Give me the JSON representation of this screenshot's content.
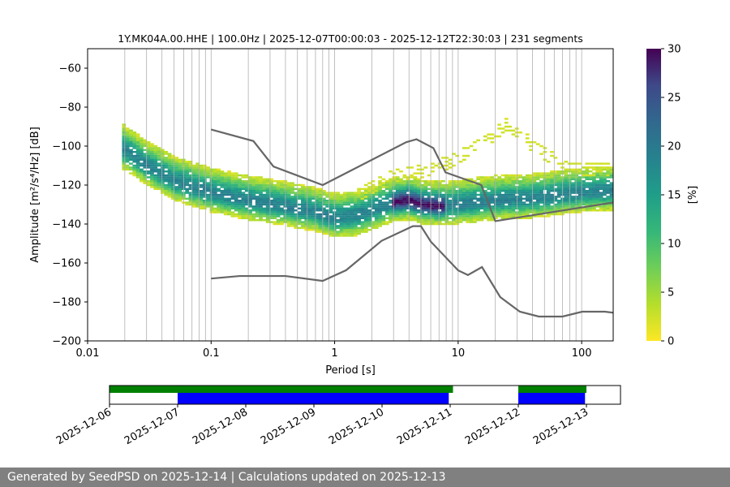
{
  "title": "1Y.MK04A.00.HHE | 100.0Hz | 2025-12-07T00:00:03 - 2025-12-12T22:30:03 | 231 segments",
  "footer": "Generated by SeedPSD on 2025-12-14 | Calculations updated on 2025-12-13",
  "chart_data": [
    {
      "type": "heatmap",
      "title": "1Y.MK04A.00.HHE | 100.0Hz | 2025-12-07T00:00:03 - 2025-12-12T22:30:03 | 231 segments",
      "xlabel": "Period [s]",
      "ylabel": "Amplitude [m²/s⁴/Hz] [dB]",
      "xscale": "log",
      "xlim": [
        0.01,
        180
      ],
      "ylim": [
        -200,
        -50
      ],
      "xticks": [
        {
          "value": 0.01,
          "label": "0.01"
        },
        {
          "value": 0.1,
          "label": "0.1"
        },
        {
          "value": 1,
          "label": "1"
        },
        {
          "value": 10,
          "label": "10"
        },
        {
          "value": 100,
          "label": "100"
        }
      ],
      "yticks": [
        {
          "value": -60,
          "label": "−60"
        },
        {
          "value": -80,
          "label": "−80"
        },
        {
          "value": -100,
          "label": "−100"
        },
        {
          "value": -120,
          "label": "−120"
        },
        {
          "value": -140,
          "label": "−140"
        },
        {
          "value": -160,
          "label": "−160"
        },
        {
          "value": -180,
          "label": "−180"
        },
        {
          "value": -200,
          "label": "−200"
        }
      ],
      "grid": true,
      "colorbar": {
        "label": "[%]",
        "range": [
          0,
          30
        ],
        "ticks": [
          "0",
          "5",
          "10",
          "15",
          "20",
          "25",
          "30"
        ],
        "colormap": "viridis_r"
      },
      "mode_curve": [
        [
          0.02,
          -102
        ],
        [
          0.03,
          -110
        ],
        [
          0.05,
          -118
        ],
        [
          0.1,
          -124
        ],
        [
          0.2,
          -128
        ],
        [
          0.4,
          -131
        ],
        [
          0.7,
          -134
        ],
        [
          1,
          -137
        ],
        [
          1.5,
          -136
        ],
        [
          2,
          -133
        ],
        [
          3,
          -129
        ],
        [
          4,
          -128
        ],
        [
          5,
          -130
        ],
        [
          7,
          -131
        ],
        [
          10,
          -130
        ],
        [
          20,
          -128
        ],
        [
          40,
          -127
        ],
        [
          100,
          -124
        ],
        [
          180,
          -123
        ]
      ],
      "spread": {
        "lower": 10,
        "upper": 13
      },
      "upper_branch": [
        [
          1.5,
          -126
        ],
        [
          3,
          -115
        ],
        [
          6,
          -112
        ],
        [
          10,
          -106
        ],
        [
          15,
          -97
        ],
        [
          20,
          -94
        ],
        [
          25,
          -88
        ],
        [
          40,
          -100
        ],
        [
          80,
          -112
        ],
        [
          180,
          -112
        ]
      ],
      "noise_models": [
        {
          "name": "NHNM",
          "color": "#666666",
          "points": [
            [
              0.1,
              -91.5
            ],
            [
              0.22,
              -97.4
            ],
            [
              0.32,
              -110.5
            ],
            [
              0.8,
              -120
            ],
            [
              3.8,
              -98
            ],
            [
              4.6,
              -96.5
            ],
            [
              6.3,
              -101
            ],
            [
              7.9,
              -113.5
            ],
            [
              15.4,
              -120
            ],
            [
              20,
              -138.5
            ],
            [
              354.8,
              -126
            ]
          ]
        },
        {
          "name": "NLNM",
          "color": "#666666",
          "points": [
            [
              0.1,
              -168
            ],
            [
              0.17,
              -166.7
            ],
            [
              0.4,
              -166.7
            ],
            [
              0.8,
              -169.2
            ],
            [
              1.24,
              -163.7
            ],
            [
              2.4,
              -148.6
            ],
            [
              4.3,
              -141.1
            ],
            [
              5,
              -141.1
            ],
            [
              6,
              -149
            ],
            [
              10,
              -163.8
            ],
            [
              12,
              -166.2
            ],
            [
              15.6,
              -162.1
            ],
            [
              21.9,
              -177.5
            ],
            [
              31.6,
              -185
            ],
            [
              45,
              -187.5
            ],
            [
              70,
              -187.5
            ],
            [
              101,
              -185
            ],
            [
              154,
              -185
            ],
            [
              328,
              -187.5
            ]
          ]
        }
      ]
    },
    {
      "type": "timeline",
      "xlim": [
        "2025-12-06",
        "2025-12-13 12:00"
      ],
      "xticks": [
        "2025-12-06",
        "2025-12-07",
        "2025-12-08",
        "2025-12-09",
        "2025-12-10",
        "2025-12-11",
        "2025-12-12",
        "2025-12-13"
      ],
      "data_segments": {
        "color": "#008000",
        "segments": [
          [
            "2025-12-06 00:00",
            "2025-12-11 01:00"
          ],
          [
            "2025-12-12 00:00",
            "2025-12-13 00:00"
          ]
        ]
      },
      "psd_segments": {
        "color": "#0000ff",
        "segments": [
          [
            "2025-12-07 00:00",
            "2025-12-08 00:00"
          ],
          [
            "2025-12-08 00:00",
            "2025-12-10 00:00"
          ],
          [
            "2025-12-10 00:00",
            "2025-12-10 23:30"
          ],
          [
            "2025-12-12 00:00",
            "2025-12-12 23:30"
          ]
        ]
      }
    }
  ]
}
